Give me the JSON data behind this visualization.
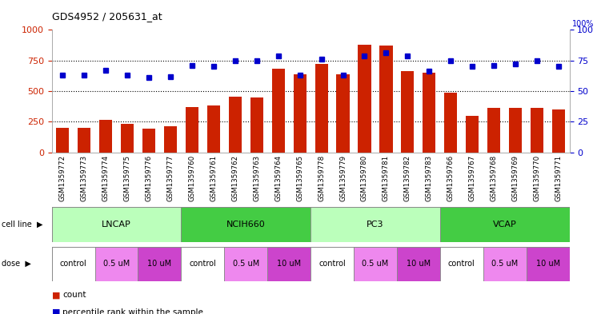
{
  "title": "GDS4952 / 205631_at",
  "samples": [
    "GSM1359772",
    "GSM1359773",
    "GSM1359774",
    "GSM1359775",
    "GSM1359776",
    "GSM1359777",
    "GSM1359760",
    "GSM1359761",
    "GSM1359762",
    "GSM1359763",
    "GSM1359764",
    "GSM1359765",
    "GSM1359778",
    "GSM1359779",
    "GSM1359780",
    "GSM1359781",
    "GSM1359782",
    "GSM1359783",
    "GSM1359766",
    "GSM1359767",
    "GSM1359768",
    "GSM1359769",
    "GSM1359770",
    "GSM1359771"
  ],
  "counts": [
    200,
    200,
    265,
    235,
    190,
    210,
    370,
    380,
    455,
    450,
    680,
    640,
    720,
    640,
    880,
    870,
    660,
    650,
    490,
    300,
    365,
    365,
    365,
    350
  ],
  "percentiles": [
    63,
    63,
    67,
    63,
    61,
    62,
    71,
    70,
    75,
    75,
    79,
    63,
    76,
    63,
    79,
    81,
    79,
    66,
    75,
    70,
    71,
    72,
    75,
    70
  ],
  "bar_color": "#cc2200",
  "dot_color": "#0000cc",
  "cell_lines": [
    {
      "name": "LNCAP",
      "start": 0,
      "end": 6,
      "color": "#bbffbb"
    },
    {
      "name": "NCIH660",
      "start": 6,
      "end": 12,
      "color": "#44cc44"
    },
    {
      "name": "PC3",
      "start": 12,
      "end": 18,
      "color": "#bbffbb"
    },
    {
      "name": "VCAP",
      "start": 18,
      "end": 24,
      "color": "#44cc44"
    }
  ],
  "doses": [
    {
      "name": "control",
      "start": 0,
      "end": 2,
      "color": "#ffffff"
    },
    {
      "name": "0.5 uM",
      "start": 2,
      "end": 4,
      "color": "#ee88ee"
    },
    {
      "name": "10 uM",
      "start": 4,
      "end": 6,
      "color": "#cc44cc"
    },
    {
      "name": "control",
      "start": 6,
      "end": 8,
      "color": "#ffffff"
    },
    {
      "name": "0.5 uM",
      "start": 8,
      "end": 10,
      "color": "#ee88ee"
    },
    {
      "name": "10 uM",
      "start": 10,
      "end": 12,
      "color": "#cc44cc"
    },
    {
      "name": "control",
      "start": 12,
      "end": 14,
      "color": "#ffffff"
    },
    {
      "name": "0.5 uM",
      "start": 14,
      "end": 16,
      "color": "#ee88ee"
    },
    {
      "name": "10 uM",
      "start": 16,
      "end": 18,
      "color": "#cc44cc"
    },
    {
      "name": "control",
      "start": 18,
      "end": 20,
      "color": "#ffffff"
    },
    {
      "name": "0.5 uM",
      "start": 20,
      "end": 22,
      "color": "#ee88ee"
    },
    {
      "name": "10 uM",
      "start": 22,
      "end": 24,
      "color": "#cc44cc"
    }
  ],
  "ylim_left": [
    0,
    1000
  ],
  "ylim_right": [
    0,
    100
  ],
  "yticks_left": [
    0,
    250,
    500,
    750,
    1000
  ],
  "yticks_right": [
    0,
    25,
    50,
    75,
    100
  ],
  "hlines": [
    250,
    500,
    750
  ],
  "bg_color": "#ffffff",
  "xticklabel_bg": "#dddddd"
}
